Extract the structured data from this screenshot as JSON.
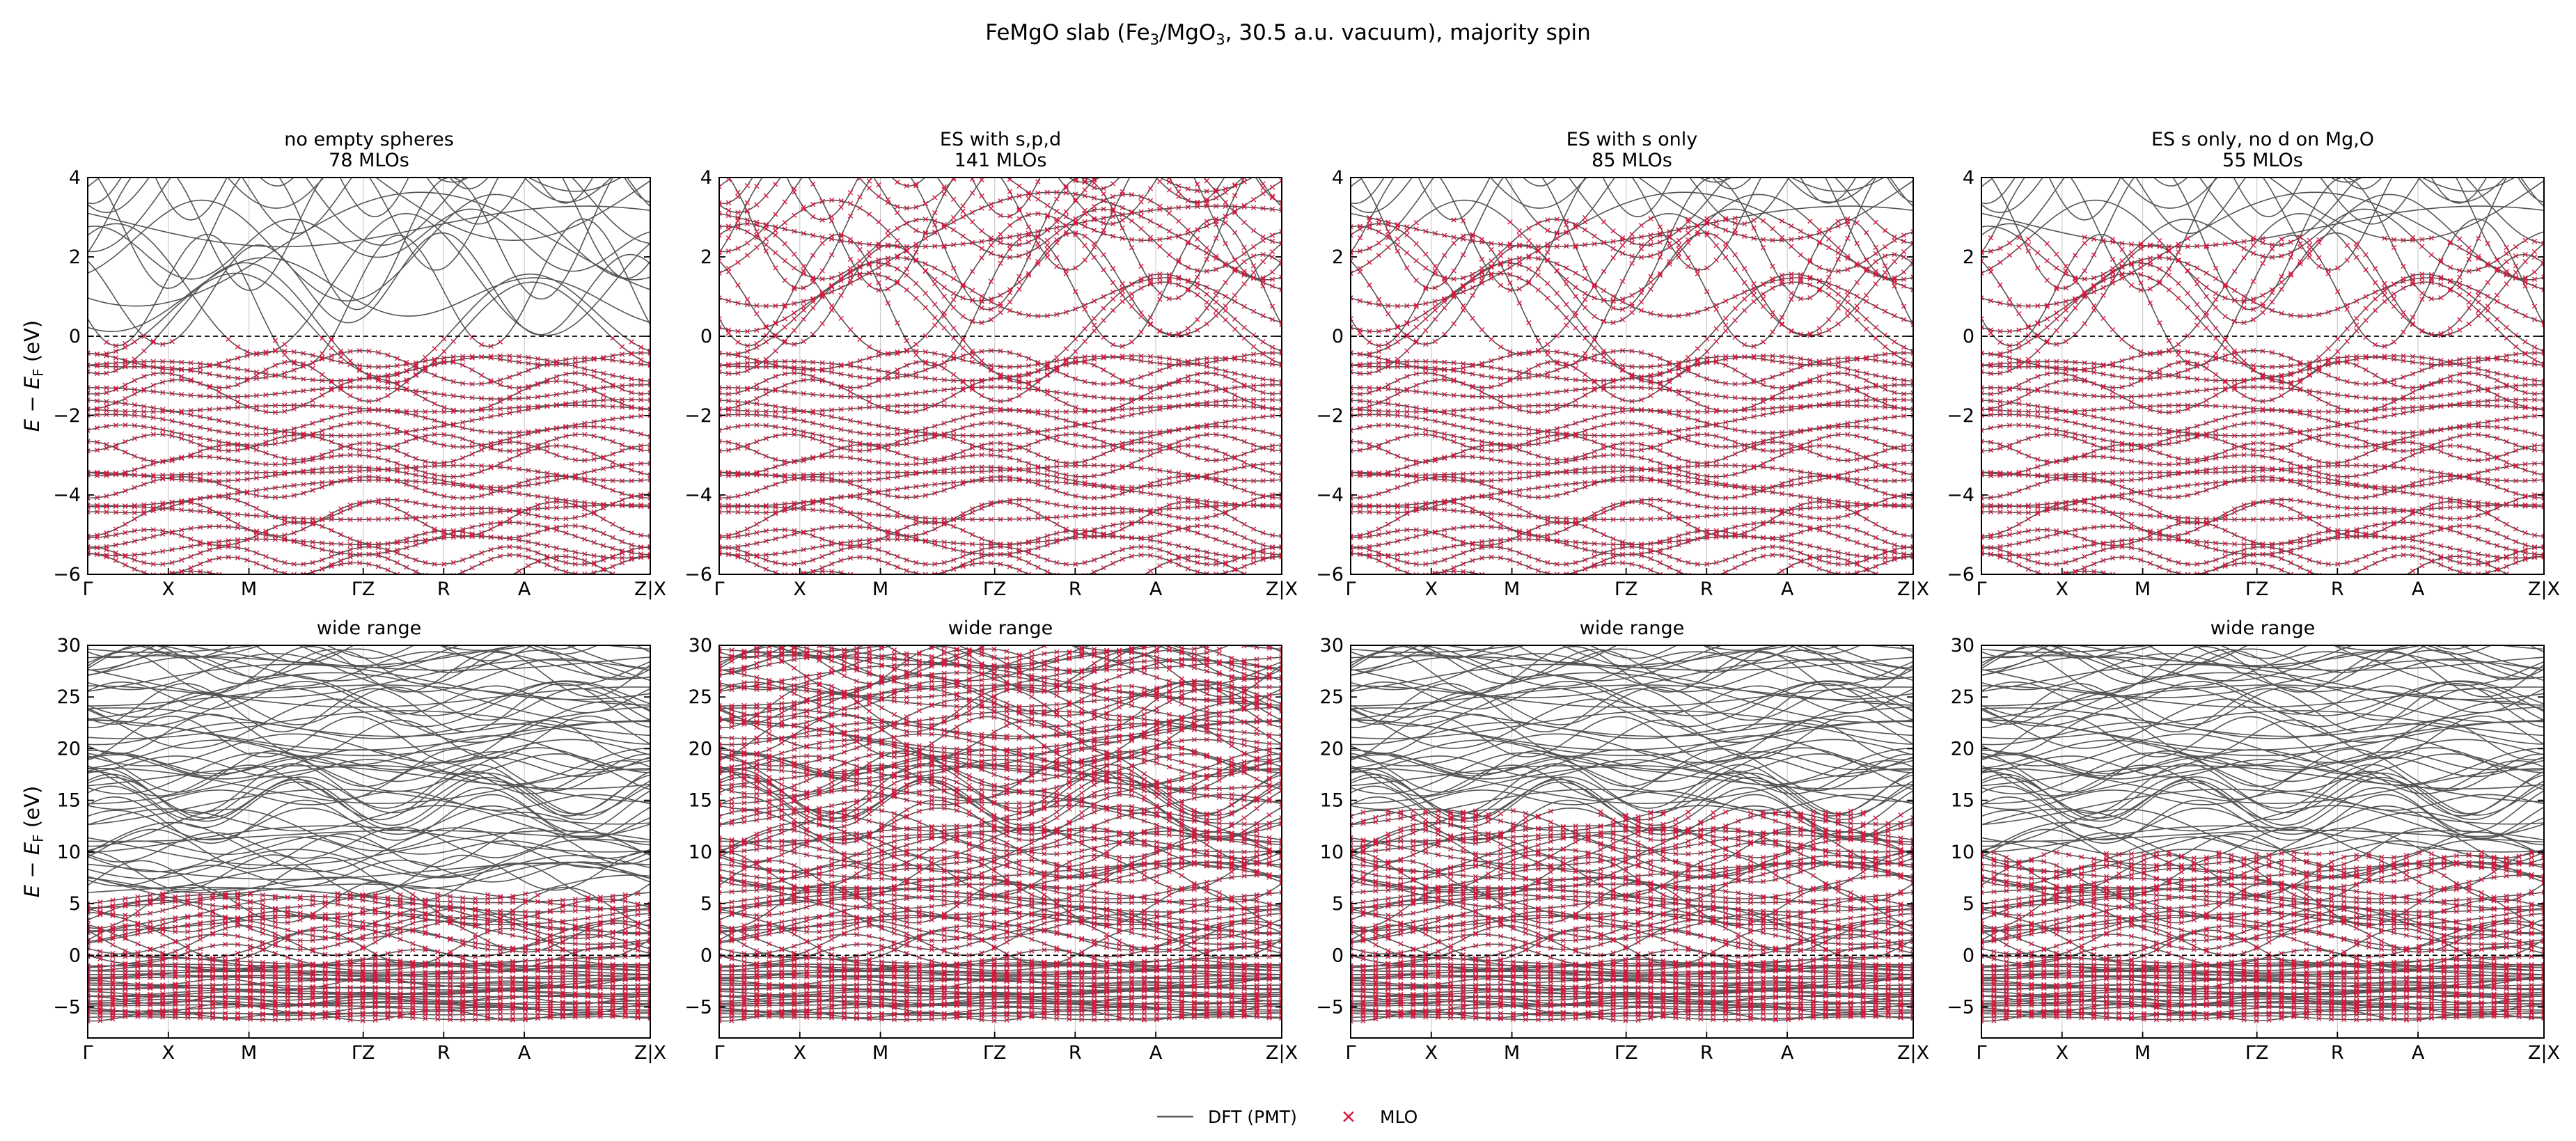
{
  "figure": {
    "title_main": "FeMgO slab (Fe",
    "title_sub1": "3",
    "title_mid": "/MgO",
    "title_sub2": "3",
    "title_end": ", 30.5 a.u. vacuum), majority spin"
  },
  "colors": {
    "dft": "#555555",
    "mlo": "#d6183e",
    "fermi": "#000000",
    "kline": "#cccccc"
  },
  "legend": {
    "dft_label": "DFT (PMT)",
    "mlo_label": "MLO"
  },
  "ylabel": {
    "e": "E",
    "minus": " − ",
    "ef": "E",
    "f": "F",
    "unit": "   (eV)"
  },
  "kpath": {
    "labels": [
      "Γ",
      "X",
      "M",
      "ΓZ",
      "R",
      "A",
      "Z|X"
    ],
    "positions": [
      0,
      0.1433,
      0.2866,
      0.4897,
      0.6328,
      0.7761,
      1
    ]
  },
  "chart_data": [
    {
      "type": "line",
      "row": 0,
      "title_line1": "no empty spheres",
      "title_line2": "78 MLOs",
      "ylim": [
        -6,
        4
      ],
      "yticks": [
        -6,
        -4,
        -2,
        0,
        2,
        4
      ],
      "fermi_level": 0,
      "mlo_matches_dft_below": 0,
      "legend": "bottom-center"
    },
    {
      "type": "line",
      "row": 0,
      "title_line1": "ES with s,p,d",
      "title_line2": "141 MLOs",
      "ylim": [
        -6,
        4
      ],
      "yticks": [
        -6,
        -4,
        -2,
        0,
        2,
        4
      ],
      "fermi_level": 0,
      "mlo_matches_dft_below": 4
    },
    {
      "type": "line",
      "row": 0,
      "title_line1": "ES with s only",
      "title_line2": "85 MLOs",
      "ylim": [
        -6,
        4
      ],
      "yticks": [
        -6,
        -4,
        -2,
        0,
        2,
        4
      ],
      "fermi_level": 0,
      "mlo_matches_dft_below": 3
    },
    {
      "type": "line",
      "row": 0,
      "title_line1": "ES s only, no d on Mg,O",
      "title_line2": "55 MLOs",
      "ylim": [
        -6,
        4
      ],
      "yticks": [
        -6,
        -4,
        -2,
        0,
        2,
        4
      ],
      "fermi_level": 0,
      "mlo_matches_dft_below": 2.5
    },
    {
      "type": "line",
      "row": 1,
      "title_line1": "wide range",
      "ylim": [
        -8,
        30
      ],
      "yticks": [
        -5,
        0,
        5,
        10,
        15,
        20,
        25,
        30
      ],
      "fermi_level": 0,
      "mlo_matches_dft_below": 6
    },
    {
      "type": "line",
      "row": 1,
      "title_line1": "wide range",
      "ylim": [
        -8,
        30
      ],
      "yticks": [
        -5,
        0,
        5,
        10,
        15,
        20,
        25,
        30
      ],
      "fermi_level": 0,
      "mlo_matches_dft_below": 30
    },
    {
      "type": "line",
      "row": 1,
      "title_line1": "wide range",
      "ylim": [
        -8,
        30
      ],
      "yticks": [
        -5,
        0,
        5,
        10,
        15,
        20,
        25,
        30
      ],
      "fermi_level": 0,
      "mlo_matches_dft_below": 14
    },
    {
      "type": "line",
      "row": 1,
      "title_line1": "wide range",
      "ylim": [
        -8,
        30
      ],
      "yticks": [
        -5,
        0,
        5,
        10,
        15,
        20,
        25,
        30
      ],
      "fermi_level": 0,
      "mlo_matches_dft_below": 10
    }
  ]
}
